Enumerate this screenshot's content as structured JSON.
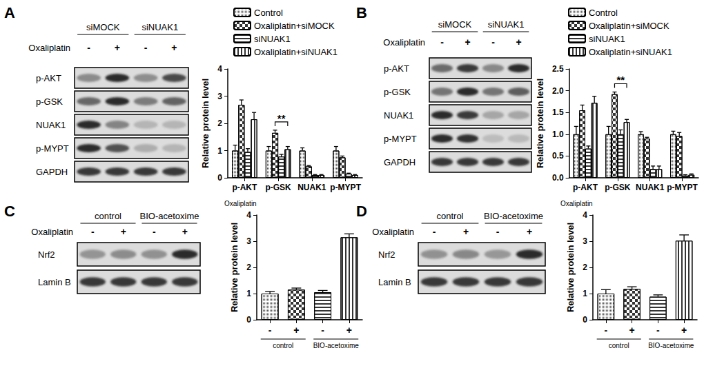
{
  "chart_data": [
    {
      "type": "bar",
      "ylabel": "Relative protein level",
      "categories": [
        "p-AKT",
        "p-GSK",
        "NUAK1",
        "p-MYPT"
      ],
      "series": [
        {
          "name": "Control",
          "color": "#ffffff",
          "values": [
            1.0,
            1.0,
            1.0,
            1.0
          ],
          "errors": [
            0.2,
            0.15,
            0.1,
            0.15
          ]
        },
        {
          "name": "Oxaliplatin+siMOCK",
          "color": "#ffffff",
          "values": [
            2.68,
            1.65,
            0.42,
            0.75
          ],
          "errors": [
            0.18,
            0.1,
            0.03,
            0.05
          ]
        },
        {
          "name": "siNUAK1",
          "color": "#ffffff",
          "values": [
            0.95,
            0.78,
            0.1,
            0.15
          ],
          "errors": [
            0.12,
            0.08,
            0.02,
            0.02
          ]
        },
        {
          "name": "Oxaliplatin+siNUAK1",
          "color": "#ffffff",
          "values": [
            2.15,
            1.05,
            0.1,
            0.1
          ],
          "errors": [
            0.25,
            0.1,
            0.02,
            0.02
          ]
        }
      ],
      "ylim": [
        0,
        4
      ],
      "yticks": [
        0,
        1,
        2,
        3,
        4
      ],
      "grid": false,
      "legend": "top",
      "annotations": [
        {
          "text": "**",
          "category": "p-GSK",
          "from": "Oxaliplatin+siMOCK",
          "to": "Oxaliplatin+siNUAK1"
        }
      ]
    },
    {
      "type": "bar",
      "ylabel": "Relative protein level",
      "categories": [
        "p-AKT",
        "p-GSK",
        "NUAK1",
        "p-MYPT"
      ],
      "series": [
        {
          "name": "Control",
          "color": "#ffffff",
          "values": [
            1.0,
            1.0,
            1.0,
            1.0
          ],
          "errors": [
            0.18,
            0.18,
            0.06,
            0.07
          ]
        },
        {
          "name": "Oxaliplatin+siMOCK",
          "color": "#ffffff",
          "values": [
            1.55,
            1.92,
            0.9,
            0.96
          ],
          "errors": [
            0.12,
            0.05,
            0.03,
            0.08
          ]
        },
        {
          "name": "siNUAK1",
          "color": "#ffffff",
          "values": [
            0.67,
            1.0,
            0.2,
            0.05
          ],
          "errors": [
            0.06,
            0.1,
            0.07,
            0.02
          ]
        },
        {
          "name": "Oxaliplatin+siNUAK1",
          "color": "#ffffff",
          "values": [
            1.72,
            1.28,
            0.2,
            0.07
          ],
          "errors": [
            0.15,
            0.06,
            0.07,
            0.02
          ]
        }
      ],
      "ylim": [
        0,
        2.5
      ],
      "yticks": [
        {
          "value": 0,
          "label": "0.0"
        },
        0.5,
        {
          "value": 1,
          "label": "1.0"
        },
        1.5,
        {
          "value": 2,
          "label": "2.0"
        },
        2.5
      ],
      "grid": false,
      "legend": "top",
      "annotations": [
        {
          "text": "**",
          "category": "p-GSK",
          "from": "Oxaliplatin+siMOCK",
          "to": "Oxaliplatin+siNUAK1"
        }
      ]
    },
    {
      "type": "bar",
      "ylabel": "Relative protein level",
      "categories": [
        "-",
        "+",
        "-",
        "+"
      ],
      "xlabel": "Oxaliplatin",
      "groups": [
        "control",
        "BIO-acetoxime"
      ],
      "values": [
        1.0,
        1.15,
        1.05,
        3.15
      ],
      "errors": [
        0.08,
        0.06,
        0.07,
        0.13
      ],
      "colors": [
        "#ffffff",
        "#ffffff",
        "#ffffff",
        "#ffffff"
      ],
      "ylim": [
        0,
        4
      ],
      "yticks": [
        0,
        1,
        2,
        3,
        4
      ],
      "grid": false
    },
    {
      "type": "bar",
      "ylabel": "Relative protein level",
      "categories": [
        "-",
        "+",
        "-",
        "+"
      ],
      "xlabel": "Oxaliplatin",
      "groups": [
        "control",
        "BIO-acetoxime"
      ],
      "values": [
        1.0,
        1.18,
        0.88,
        3.02
      ],
      "errors": [
        0.15,
        0.08,
        0.07,
        0.22
      ],
      "colors": [
        "#ffffff",
        "#ffffff",
        "#ffffff",
        "#ffffff"
      ],
      "ylim": [
        0,
        4
      ],
      "yticks": [
        0,
        1,
        2,
        3,
        4
      ],
      "grid": false
    }
  ],
  "blots": [
    {
      "panel": "A",
      "groups": [
        "siMOCK",
        "siNUAK1"
      ],
      "treatment": "Oxaliplatin",
      "lanes": [
        "-",
        "+",
        "-",
        "+"
      ],
      "rows": [
        "p-AKT",
        "p-GSK",
        "NUAK1",
        "p-MYPT",
        "GAPDH"
      ]
    },
    {
      "panel": "B",
      "groups": [
        "siMOCK",
        "siNUAK1"
      ],
      "treatment": "Oxaliplatin",
      "lanes": [
        "-",
        "+",
        "-",
        "+"
      ],
      "rows": [
        "p-AKT",
        "p-GSK",
        "NUAK1",
        "p-MYPT",
        "GAPDH"
      ]
    },
    {
      "panel": "C",
      "groups": [
        "control",
        "BIO-acetoxime"
      ],
      "treatment": "Oxaliplatin",
      "lanes": [
        "-",
        "+",
        "-",
        "+"
      ],
      "rows": [
        "Nrf2",
        "Lamin B"
      ]
    },
    {
      "panel": "D",
      "groups": [
        "control",
        "BIO-acetoxime"
      ],
      "treatment": "Oxaliplatin",
      "lanes": [
        "-",
        "+",
        "-",
        "+"
      ],
      "rows": [
        "Nrf2",
        "Lamin B"
      ]
    }
  ]
}
